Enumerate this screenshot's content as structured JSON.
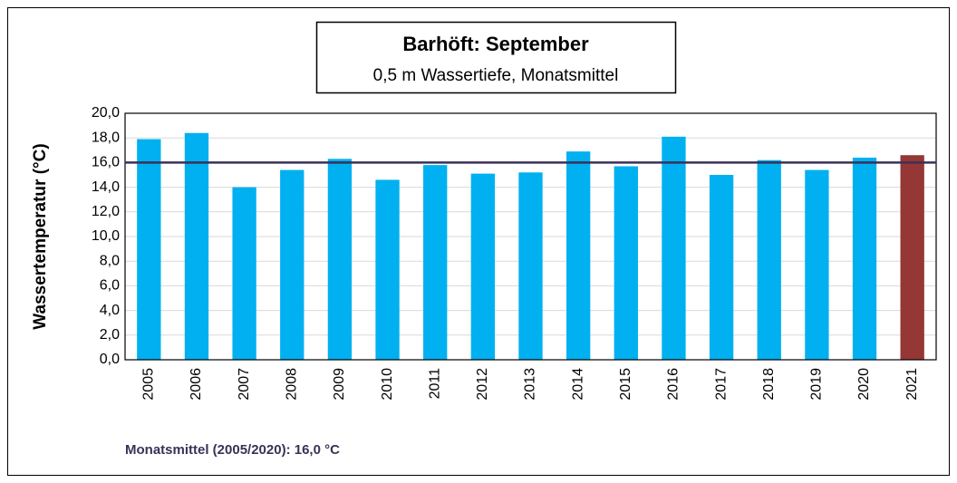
{
  "chart_data": {
    "type": "bar",
    "title": "Barhöft: September",
    "subtitle": "0,5 m Wassertiefe, Monatsmittel",
    "y_label": "Wassertemperatur (°C)",
    "annotation": "Monatsmittel (2005/2020):  16,0 °C",
    "categories": [
      "2005",
      "2006",
      "2007",
      "2008",
      "2009",
      "2010",
      "2011",
      "2012",
      "2013",
      "2014",
      "2015",
      "2016",
      "2017",
      "2018",
      "2019",
      "2020",
      "2021"
    ],
    "values": [
      17.9,
      18.4,
      14.0,
      15.4,
      16.3,
      14.6,
      15.8,
      15.1,
      15.2,
      16.9,
      15.7,
      18.1,
      15.0,
      16.2,
      15.4,
      16.4,
      16.6
    ],
    "colors": [
      "#00b0f0",
      "#00b0f0",
      "#00b0f0",
      "#00b0f0",
      "#00b0f0",
      "#00b0f0",
      "#00b0f0",
      "#00b0f0",
      "#00b0f0",
      "#00b0f0",
      "#00b0f0",
      "#00b0f0",
      "#00b0f0",
      "#00b0f0",
      "#00b0f0",
      "#00b0f0",
      "#953735"
    ],
    "reference_line": {
      "value": 16,
      "color": "#3b3157"
    },
    "ylim": [
      0,
      20
    ],
    "yticks": [
      {
        "value": 0,
        "label": "0,0"
      },
      {
        "value": 2,
        "label": "2,0"
      },
      {
        "value": 4,
        "label": "4,0"
      },
      {
        "value": 6,
        "label": "6,0"
      },
      {
        "value": 8,
        "label": "8,0"
      },
      {
        "value": 10,
        "label": "10,0"
      },
      {
        "value": 12,
        "label": "12,0"
      },
      {
        "value": 14,
        "label": "14,0"
      },
      {
        "value": 16,
        "label": "16,0"
      },
      {
        "value": 18,
        "label": "18,0"
      },
      {
        "value": 20,
        "label": "20,0"
      }
    ],
    "grid": true
  }
}
